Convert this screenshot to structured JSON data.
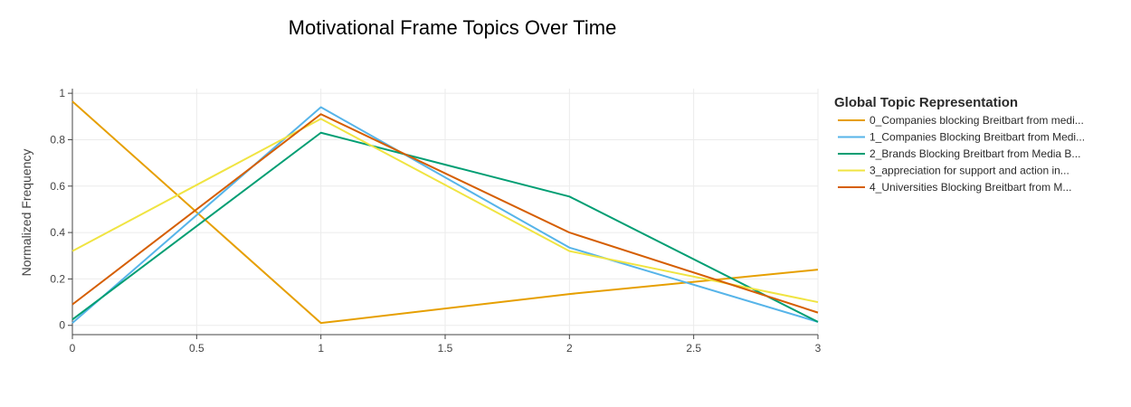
{
  "chart_data": {
    "type": "line",
    "title": "Motivational Frame Topics Over Time",
    "xlabel": "",
    "ylabel": "Normalized Frequency",
    "xlim": [
      0,
      3
    ],
    "ylim": [
      -0.04,
      1.02
    ],
    "x_ticks": [
      0,
      0.5,
      1,
      1.5,
      2,
      2.5,
      3
    ],
    "x_tick_labels": [
      "0",
      "0.5",
      "1",
      "1.5",
      "2",
      "2.5",
      "3"
    ],
    "y_ticks": [
      0,
      0.2,
      0.4,
      0.6,
      0.8,
      1
    ],
    "y_tick_labels": [
      "0",
      "0.2",
      "0.4",
      "0.6",
      "0.8",
      "1"
    ],
    "grid": true,
    "legend_title": "Global Topic Representation",
    "legend_position": "right",
    "x": [
      0,
      1,
      2,
      3
    ],
    "series": [
      {
        "name": "0_Companies blocking Breitbart from medi...",
        "color": "#E69F00",
        "values": [
          0.965,
          0.01,
          0.135,
          0.24
        ]
      },
      {
        "name": "1_Companies Blocking Breitbart from Medi...",
        "color": "#56B4E9",
        "values": [
          0.01,
          0.94,
          0.335,
          0.015
        ]
      },
      {
        "name": "2_Brands Blocking Breitbart from Media B...",
        "color": "#009E73",
        "values": [
          0.025,
          0.83,
          0.555,
          0.015
        ]
      },
      {
        "name": "3_appreciation for support and action in...",
        "color": "#F0E442",
        "values": [
          0.32,
          0.89,
          0.32,
          0.1
        ]
      },
      {
        "name": "4_Universities Blocking Breitbart from M...",
        "color": "#D55E00",
        "values": [
          0.09,
          0.91,
          0.4,
          0.055
        ]
      }
    ]
  }
}
